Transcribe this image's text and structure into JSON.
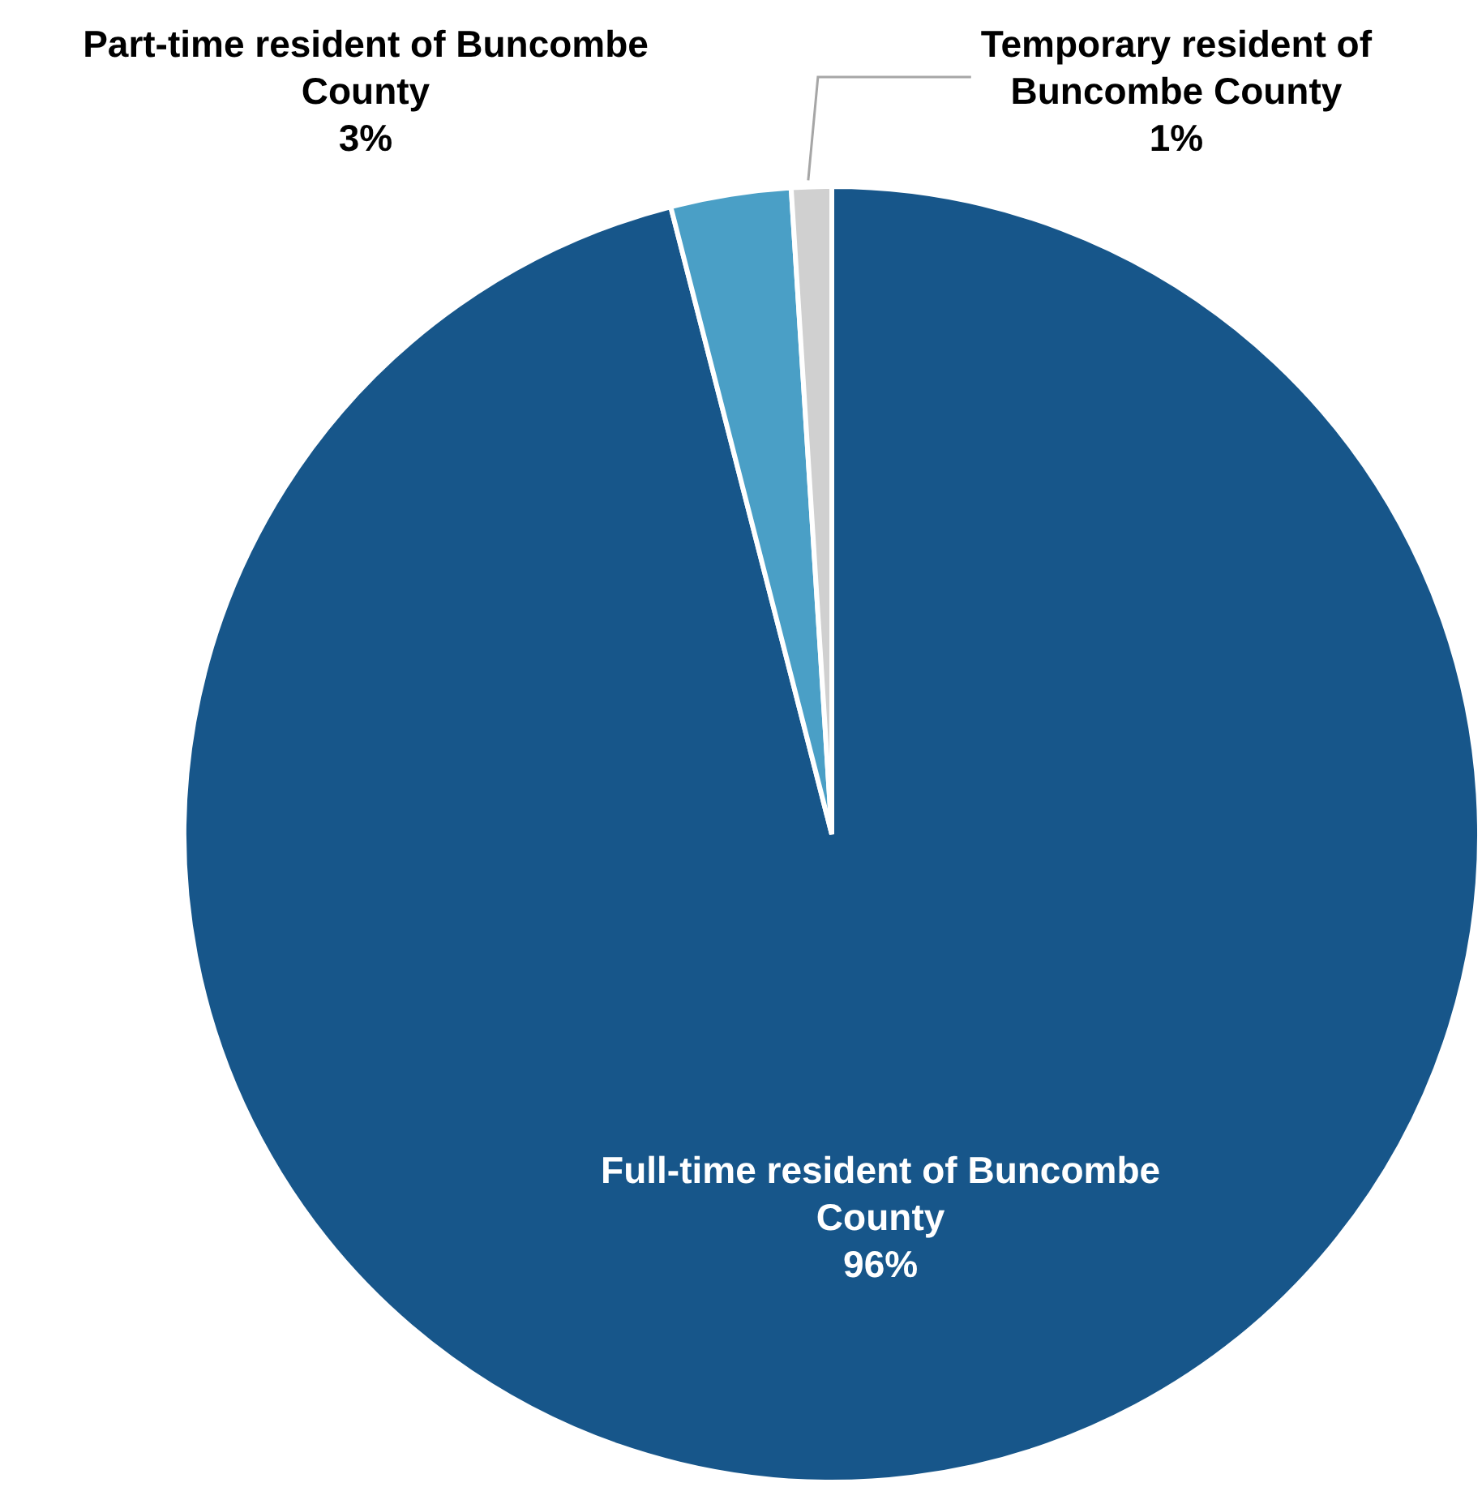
{
  "chart_data": {
    "type": "pie",
    "categories": [
      "Full-time resident of Buncombe County",
      "Part-time resident of Buncombe County",
      "Temporary resident of Buncombe County"
    ],
    "values": [
      96,
      3,
      1
    ],
    "colors": [
      "#17568a",
      "#4a9fc6",
      "#d0d0d0"
    ],
    "value_labels": [
      "96%",
      "3%",
      "1%"
    ],
    "legend": false
  }
}
